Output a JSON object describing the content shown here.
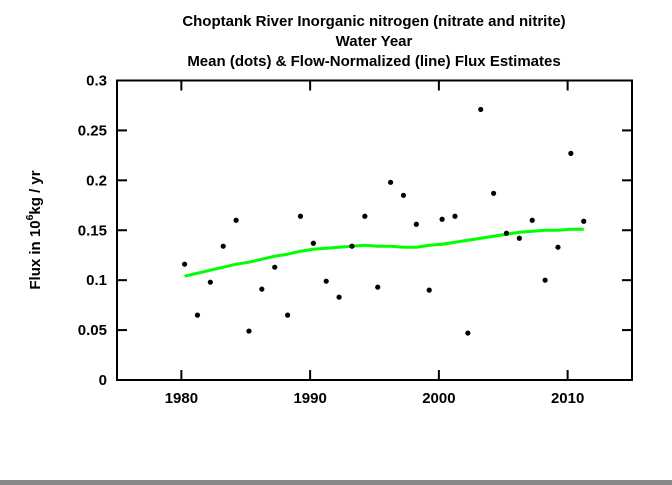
{
  "chart_data": {
    "type": "scatter",
    "title_lines": [
      "Choptank River   Inorganic nitrogen (nitrate and nitrite)",
      "Water Year",
      "Mean (dots) & Flow-Normalized (line) Flux Estimates"
    ],
    "xlabel": "",
    "ylabel": {
      "prefix": "Flux in 10",
      "superscript": "6",
      "suffix": "kg / yr",
      "plain": "Flux in 10^6 kg/yr"
    },
    "xlim": [
      1975,
      2015
    ],
    "ylim": [
      0,
      0.3
    ],
    "x_ticks": [
      1980,
      1990,
      2000,
      2010
    ],
    "x_tick_labels": [
      "1980",
      "1990",
      "2000",
      "2010"
    ],
    "y_ticks": [
      0,
      0.05,
      0.1,
      0.15,
      0.2,
      0.25,
      0.3
    ],
    "y_tick_labels": [
      "0",
      "0.05",
      "0.1",
      "0.15",
      "0.2",
      "0.25",
      "0.3"
    ],
    "grid": false,
    "legend_position": "none",
    "series": [
      {
        "name": "Mean flux estimates (dots)",
        "type": "scatter",
        "color": "#000000",
        "years": [
          1980,
          1981,
          1982,
          1983,
          1984,
          1985,
          1986,
          1987,
          1988,
          1989,
          1990,
          1991,
          1992,
          1993,
          1994,
          1995,
          1996,
          1997,
          1998,
          1999,
          2000,
          2001,
          2002,
          2003,
          2004,
          2005,
          2006,
          2007,
          2008,
          2009,
          2010,
          2011
        ],
        "values": [
          0.116,
          0.065,
          0.098,
          0.134,
          0.16,
          0.049,
          0.091,
          0.113,
          0.065,
          0.164,
          0.137,
          0.099,
          0.083,
          0.134,
          0.164,
          0.093,
          0.198,
          0.185,
          0.156,
          0.09,
          0.161,
          0.164,
          0.047,
          0.271,
          0.187,
          0.147,
          0.142,
          0.16,
          0.1,
          0.133,
          0.227,
          0.159
        ]
      },
      {
        "name": "Flow-Normalized flux estimates (line)",
        "type": "line",
        "color": "#00FF00",
        "years": [
          1980,
          1981,
          1982,
          1983,
          1984,
          1985,
          1986,
          1987,
          1988,
          1989,
          1990,
          1991,
          1992,
          1993,
          1994,
          1995,
          1996,
          1997,
          1998,
          1999,
          2000,
          2001,
          2002,
          2003,
          2004,
          2005,
          2006,
          2007,
          2008,
          2009,
          2010,
          2011
        ],
        "values": [
          0.104,
          0.107,
          0.11,
          0.113,
          0.116,
          0.118,
          0.121,
          0.124,
          0.126,
          0.129,
          0.131,
          0.132,
          0.133,
          0.134,
          0.135,
          0.134,
          0.134,
          0.133,
          0.133,
          0.135,
          0.136,
          0.138,
          0.14,
          0.142,
          0.144,
          0.146,
          0.148,
          0.149,
          0.15,
          0.15,
          0.151,
          0.151
        ]
      }
    ],
    "colors": {
      "background": "#FFFFFF",
      "axis": "#000000",
      "dots": "#000000",
      "flow_normalized_line": "#00FF00",
      "text": "#000000"
    }
  }
}
